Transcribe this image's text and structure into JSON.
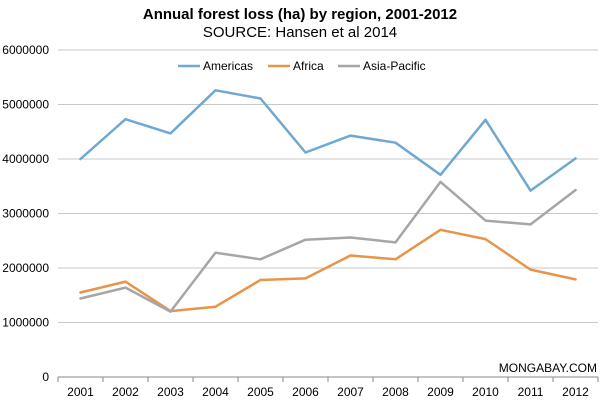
{
  "chart_data": {
    "type": "line",
    "title": "Annual forest loss (ha) by region, 2001-2012",
    "subtitle": "SOURCE: Hansen et al 2014",
    "categories": [
      "2001",
      "2002",
      "2003",
      "2004",
      "2005",
      "2006",
      "2007",
      "2008",
      "2009",
      "2010",
      "2011",
      "2012"
    ],
    "y_ticks": [
      "0",
      "1000000",
      "2000000",
      "3000000",
      "4000000",
      "5000000",
      "6000000"
    ],
    "ylim": [
      0,
      6000000
    ],
    "grid": true,
    "legend_position": "top-center",
    "series": [
      {
        "name": "Americas",
        "color": "#6fa8d2",
        "values": [
          4000000,
          4730000,
          4470000,
          5260000,
          5110000,
          4120000,
          4430000,
          4300000,
          3710000,
          4720000,
          3420000,
          4010000
        ]
      },
      {
        "name": "Africa",
        "color": "#e8944a",
        "values": [
          1550000,
          1750000,
          1210000,
          1290000,
          1780000,
          1810000,
          2230000,
          2160000,
          2700000,
          2530000,
          1970000,
          1790000
        ]
      },
      {
        "name": "Asia-Pacific",
        "color": "#a6a6a6",
        "values": [
          1440000,
          1640000,
          1200000,
          2280000,
          2160000,
          2520000,
          2560000,
          2470000,
          3580000,
          2870000,
          2800000,
          3430000
        ]
      }
    ],
    "watermark": "MONGABAY.COM"
  }
}
